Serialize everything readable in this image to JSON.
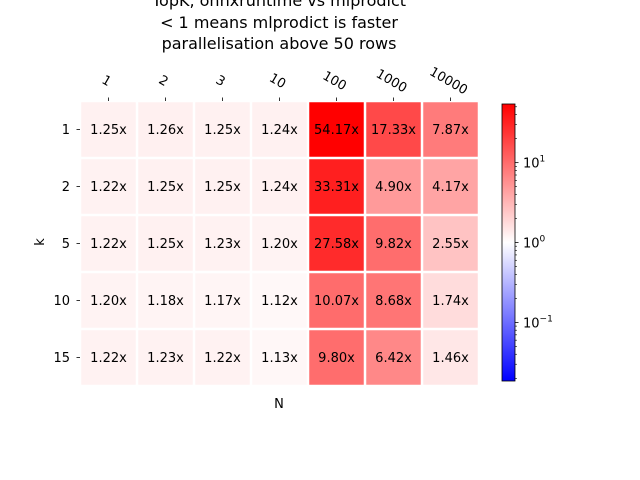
{
  "chart_data": {
    "type": "heatmap",
    "title_lines": [
      "TopK, onnxruntime vs mlprodict",
      "< 1 means mlprodict is faster",
      "parallelisation above 50 rows"
    ],
    "xlabel": "N",
    "ylabel": "k",
    "x_categories": [
      "1",
      "2",
      "3",
      "10",
      "100",
      "1000",
      "10000"
    ],
    "y_categories": [
      "1",
      "2",
      "5",
      "10",
      "15"
    ],
    "values": [
      [
        1.25,
        1.26,
        1.25,
        1.24,
        54.17,
        17.33,
        7.87
      ],
      [
        1.22,
        1.25,
        1.25,
        1.24,
        33.31,
        4.9,
        4.17
      ],
      [
        1.22,
        1.25,
        1.23,
        1.2,
        27.58,
        9.82,
        2.55
      ],
      [
        1.2,
        1.18,
        1.17,
        1.12,
        10.07,
        8.68,
        1.74
      ],
      [
        1.22,
        1.23,
        1.22,
        1.13,
        9.8,
        6.42,
        1.46
      ]
    ],
    "labels": [
      [
        "1.25x",
        "1.26x",
        "1.25x",
        "1.24x",
        "54.17x",
        "17.33x",
        "7.87x"
      ],
      [
        "1.22x",
        "1.25x",
        "1.25x",
        "1.24x",
        "33.31x",
        "4.90x",
        "4.17x"
      ],
      [
        "1.22x",
        "1.25x",
        "1.23x",
        "1.20x",
        "27.58x",
        "9.82x",
        "2.55x"
      ],
      [
        "1.20x",
        "1.18x",
        "1.17x",
        "1.12x",
        "10.07x",
        "8.68x",
        "1.74x"
      ],
      [
        "1.22x",
        "1.23x",
        "1.22x",
        "1.13x",
        "9.80x",
        "6.42x",
        "1.46x"
      ]
    ],
    "colormap": "bwr",
    "color_scale": "log",
    "color_range": [
      0.0185,
      54.17
    ],
    "colorbar": {
      "position": "right",
      "ticks": [
        {
          "value": 0.1,
          "base": "10",
          "exp": "−1"
        },
        {
          "value": 1,
          "base": "10",
          "exp": "0"
        },
        {
          "value": 10,
          "base": "10",
          "exp": "1"
        }
      ]
    }
  }
}
